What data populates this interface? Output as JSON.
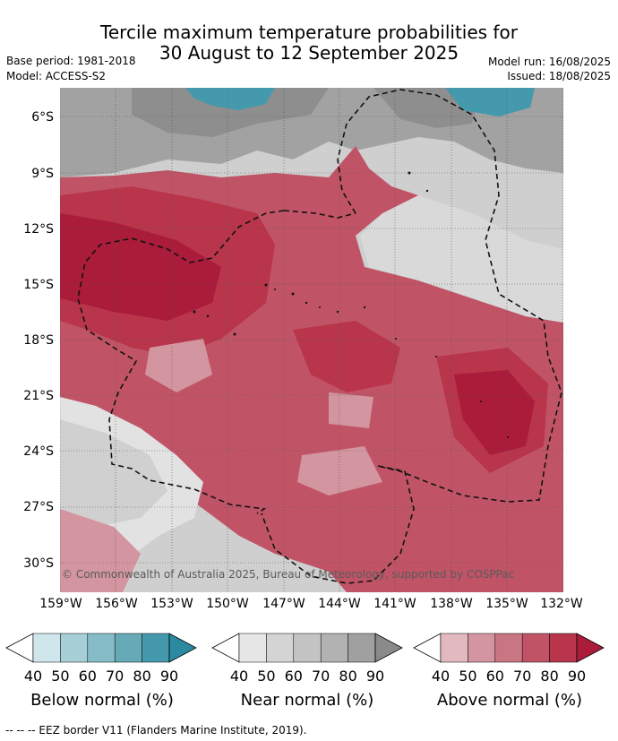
{
  "title_line1": "Tercile maximum temperature probabilities for",
  "title_line2": "30 August to 12 September 2025",
  "base_period": "Base period: 1981-2018",
  "model": "Model: ACCESS-S2",
  "model_run": "Model run: 16/08/2025",
  "issued": "Issued: 18/08/2025",
  "copyright": "© Commonwealth of Australia 2025, Bureau of Meteorology, supported by COSPPac",
  "lat_labels": [
    "6°S",
    "9°S",
    "12°S",
    "15°S",
    "18°S",
    "21°S",
    "24°S",
    "27°S",
    "30°S"
  ],
  "lon_labels": [
    "159°W",
    "156°W",
    "153°W",
    "150°W",
    "147°W",
    "144°W",
    "141°W",
    "138°W",
    "135°W",
    "132°W"
  ],
  "legend": {
    "ticks": [
      "40",
      "50",
      "60",
      "70",
      "80",
      "90"
    ],
    "below": {
      "label": "Below normal (%)",
      "colors": [
        "#ffffff",
        "#cfe6ec",
        "#a7cfd8",
        "#85bcc8",
        "#66aab8",
        "#4499ac",
        "#2b8aa0"
      ]
    },
    "near": {
      "label": "Near normal (%)",
      "colors": [
        "#ffffff",
        "#e6e6e6",
        "#d4d4d4",
        "#c4c4c4",
        "#b2b2b2",
        "#a0a0a0",
        "#8a8a8a"
      ]
    },
    "above": {
      "label": "Above normal (%)",
      "colors": [
        "#ffffff",
        "#e2b9c0",
        "#d3959f",
        "#c97582",
        "#c05466",
        "#b8354c",
        "#ab1c3a"
      ]
    }
  },
  "footer": "--  --  -- EEZ border V11 (Flanders Marine Institute, 2019)."
}
